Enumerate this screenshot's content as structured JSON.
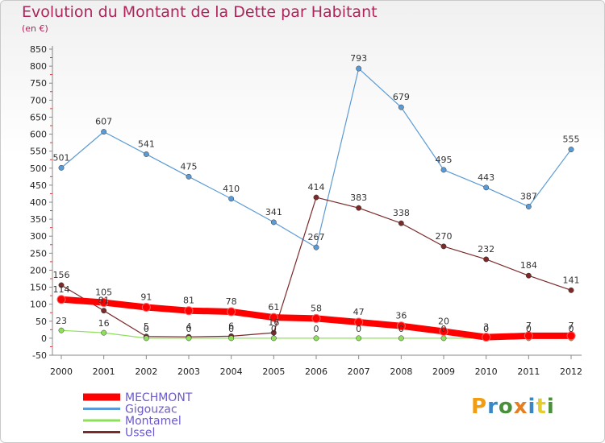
{
  "title": "Evolution du Montant de la Dette par Habitant",
  "unit": "(en €)",
  "logo": {
    "letters": [
      "P",
      "r",
      "o",
      "x",
      "i",
      "t",
      "i"
    ],
    "colors": [
      "#f39c12",
      "#3a87c8",
      "#4a8f3a",
      "#e67e22",
      "#3a87c8",
      "#e2cf2e",
      "#4a8f3a"
    ]
  },
  "chart_data": {
    "type": "line",
    "x": [
      "2000",
      "2001",
      "2002",
      "2003",
      "2004",
      "2005",
      "2006",
      "2007",
      "2008",
      "2009",
      "2010",
      "2011",
      "2012"
    ],
    "ylim": [
      -50,
      850
    ],
    "yticks": [
      "-50",
      "0",
      "50",
      "100",
      "150",
      "200",
      "250",
      "300",
      "350",
      "400",
      "450",
      "500",
      "550",
      "600",
      "650",
      "700",
      "750",
      "800",
      "850"
    ],
    "grid": false,
    "legend_position": "bottom-left",
    "series": [
      {
        "name": "MECHMONT",
        "color": "#ff0000",
        "values": [
          114,
          105,
          91,
          81,
          78,
          61,
          58,
          47,
          36,
          20,
          3,
          7,
          7
        ],
        "labels": [
          "114",
          "105",
          "91",
          "81",
          "78",
          "61",
          "58",
          "47",
          "36",
          "20",
          "3",
          "7",
          "7"
        ]
      },
      {
        "name": "Gigouzac",
        "color": "#5b9bd5",
        "values": [
          501,
          607,
          541,
          475,
          410,
          341,
          267,
          793,
          679,
          495,
          443,
          387,
          555
        ],
        "labels": [
          "501",
          "607",
          "541",
          "475",
          "410",
          "341",
          "267",
          "793",
          "679",
          "495",
          "443",
          "387",
          "555"
        ]
      },
      {
        "name": "Montamel",
        "color": "#8ee05a",
        "values": [
          23,
          16,
          0,
          0,
          0,
          0,
          0,
          0,
          0,
          0,
          0,
          0,
          0
        ],
        "labels": [
          "23",
          "16",
          "0",
          "0",
          "0",
          "0",
          "0",
          "0",
          "0",
          "0",
          "0",
          "0",
          "0"
        ]
      },
      {
        "name": "Ussel",
        "color": "#7b2a2a",
        "values": [
          156,
          81,
          5,
          4,
          6,
          16,
          414,
          383,
          338,
          270,
          232,
          184,
          141
        ],
        "labels": [
          "156",
          "81",
          "5",
          "4",
          "6",
          "16",
          "414",
          "383",
          "338",
          "270",
          "232",
          "184",
          "141"
        ]
      }
    ]
  }
}
